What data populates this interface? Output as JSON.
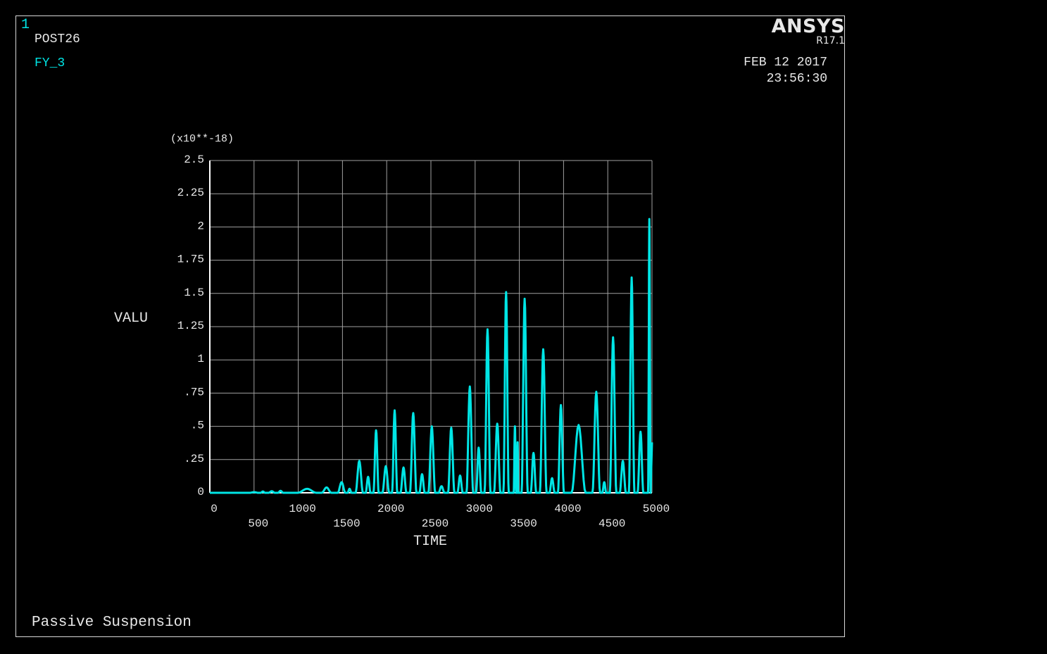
{
  "header": {
    "window_number": "1",
    "module": "POST26",
    "variable": "FY_3",
    "logo": "ANSYS",
    "release": "R17.1",
    "date": "FEB 12 2017",
    "time": "23:56:30"
  },
  "footer": {
    "title": "Passive Suspension"
  },
  "colors": {
    "background": "#000000",
    "curve": "#00e5e5",
    "text": "#e8e8e8",
    "grid": "#a0a0a0",
    "axes": "#ffffff"
  },
  "chart_data": {
    "type": "line",
    "title": "",
    "xlabel": "TIME",
    "ylabel": "VALU",
    "y_multiplier": "(x10**-18)",
    "xlim": [
      0,
      5000
    ],
    "ylim": [
      0,
      2.5
    ],
    "x_ticks": [
      "0",
      "500",
      "1000",
      "1500",
      "2000",
      "2500",
      "3000",
      "3500",
      "4000",
      "4500",
      "5000"
    ],
    "y_ticks": [
      "0",
      ".25",
      ".5",
      ".75",
      "1",
      "1.25",
      "1.5",
      "1.75",
      "2",
      "2.25",
      "2.5"
    ],
    "grid": true,
    "series": [
      {
        "name": "",
        "color": "#00e5e5",
        "peaks": [
          {
            "x": 500,
            "y": 0.005
          },
          {
            "x": 600,
            "y": 0.01
          },
          {
            "x": 700,
            "y": 0.012
          },
          {
            "x": 800,
            "y": 0.015
          },
          {
            "x": 1100,
            "y": 0.03
          },
          {
            "x": 1320,
            "y": 0.04
          },
          {
            "x": 1490,
            "y": 0.08
          },
          {
            "x": 1580,
            "y": 0.03
          },
          {
            "x": 1690,
            "y": 0.24
          },
          {
            "x": 1790,
            "y": 0.12
          },
          {
            "x": 1880,
            "y": 0.47
          },
          {
            "x": 1990,
            "y": 0.2
          },
          {
            "x": 2090,
            "y": 0.62
          },
          {
            "x": 2190,
            "y": 0.19
          },
          {
            "x": 2300,
            "y": 0.6
          },
          {
            "x": 2400,
            "y": 0.14
          },
          {
            "x": 2510,
            "y": 0.5
          },
          {
            "x": 2620,
            "y": 0.05
          },
          {
            "x": 2730,
            "y": 0.49
          },
          {
            "x": 2830,
            "y": 0.13
          },
          {
            "x": 2940,
            "y": 0.8
          },
          {
            "x": 3040,
            "y": 0.34
          },
          {
            "x": 3140,
            "y": 1.23
          },
          {
            "x": 3250,
            "y": 0.52
          },
          {
            "x": 3350,
            "y": 1.51
          },
          {
            "x": 3450,
            "y": 0.5
          },
          {
            "x": 3480,
            "y": 0.38
          },
          {
            "x": 3560,
            "y": 1.46
          },
          {
            "x": 3660,
            "y": 0.3
          },
          {
            "x": 3770,
            "y": 1.08
          },
          {
            "x": 3870,
            "y": 0.11
          },
          {
            "x": 3970,
            "y": 0.66
          },
          {
            "x": 4170,
            "y": 0.51
          },
          {
            "x": 4370,
            "y": 0.76
          },
          {
            "x": 4460,
            "y": 0.08
          },
          {
            "x": 4560,
            "y": 1.17
          },
          {
            "x": 4670,
            "y": 0.24
          },
          {
            "x": 4770,
            "y": 1.62
          },
          {
            "x": 4870,
            "y": 0.46
          },
          {
            "x": 4970,
            "y": 2.06
          }
        ],
        "end_value": 0.38
      }
    ]
  }
}
